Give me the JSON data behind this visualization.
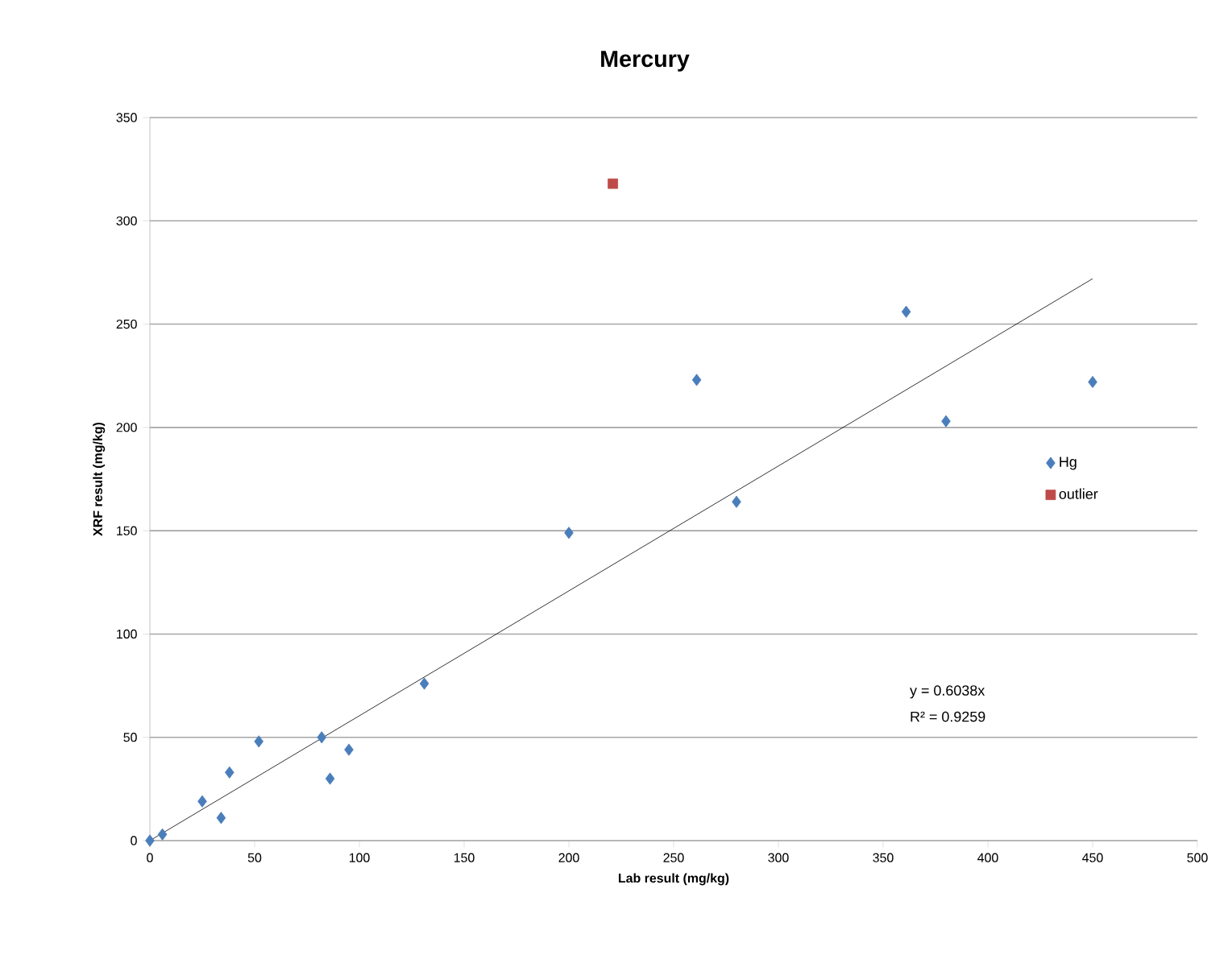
{
  "chart_data": {
    "type": "scatter",
    "title": "Mercury",
    "xlabel": "Lab result (mg/kg)",
    "ylabel": "XRF result (mg/kg)",
    "xlim": [
      0,
      500
    ],
    "xticks": [
      0,
      50,
      100,
      150,
      200,
      250,
      300,
      350,
      400,
      450,
      500
    ],
    "ylim": [
      0,
      350
    ],
    "yticks": [
      0,
      50,
      100,
      150,
      200,
      250,
      300,
      350
    ],
    "grid": "y",
    "legend": "right",
    "series": [
      {
        "name": "Hg",
        "color": "#4a7ebb",
        "marker": "diamond",
        "x": [
          0,
          6,
          25,
          34,
          38,
          52,
          82,
          86,
          95,
          131,
          200,
          261,
          280,
          361,
          380,
          450
        ],
        "values": [
          0,
          3,
          19,
          11,
          33,
          48,
          50,
          30,
          44,
          76,
          149,
          223,
          164,
          256,
          203,
          222
        ]
      },
      {
        "name": "outlier",
        "color": "#be4b48",
        "marker": "square",
        "x": [
          221
        ],
        "values": [
          318
        ]
      },
      {
        "type": "line",
        "color": "#000000",
        "marker": "none",
        "x": [
          0,
          450
        ],
        "values": [
          0,
          272
        ]
      }
    ],
    "annotations": [
      "y = 0.6038x",
      "R² = 0.9259"
    ]
  }
}
